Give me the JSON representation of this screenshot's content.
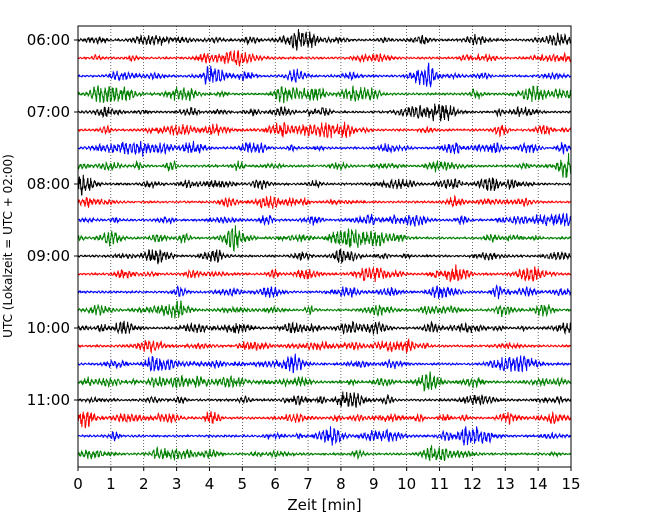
{
  "chart_data": {
    "type": "line",
    "title": "",
    "xlabel": "Zeit  [min]",
    "ylabel": "UTC (Lokalzeit = UTC + 02:00)",
    "xlim": [
      0,
      15
    ],
    "x_ticks": [
      0,
      1,
      2,
      3,
      4,
      5,
      6,
      7,
      8,
      9,
      10,
      11,
      12,
      13,
      14,
      15
    ],
    "x_tick_labels": [
      "0",
      "1",
      "2",
      "3",
      "4",
      "5",
      "6",
      "7",
      "8",
      "9",
      "10",
      "11",
      "12",
      "13",
      "14",
      "15"
    ],
    "y_tick_labels": [
      "06:00",
      "07:00",
      "08:00",
      "09:00",
      "10:00",
      "11:00"
    ],
    "grid": "vertical dotted lines at each minute",
    "trace_interval_min": 15,
    "trace_start_times": [
      "06:00",
      "06:15",
      "06:30",
      "06:45",
      "07:00",
      "07:15",
      "07:30",
      "07:45",
      "08:00",
      "08:15",
      "08:30",
      "08:45",
      "09:00",
      "09:15",
      "09:30",
      "09:45",
      "10:00",
      "10:15",
      "10:30",
      "10:45",
      "11:00",
      "11:15",
      "11:30",
      "11:45"
    ],
    "color_cycle": [
      "#000000",
      "#ff0000",
      "#0000ff",
      "#008000"
    ]
  }
}
